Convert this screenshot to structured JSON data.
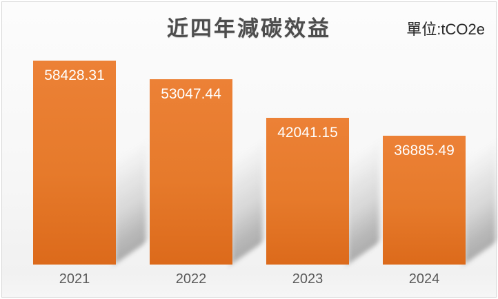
{
  "chart_data": {
    "type": "bar",
    "title": "近四年減碳效益",
    "unit_label": "單位:tCO2e",
    "categories": [
      "2021",
      "2022",
      "2023",
      "2024"
    ],
    "values": [
      58428.31,
      53047.44,
      42041.15,
      36885.49
    ],
    "value_labels": [
      "58428.31",
      "53047.44",
      "42041.15",
      "36885.49"
    ],
    "ylim": [
      0,
      58428.31
    ],
    "xlabel": "",
    "ylabel": "",
    "legend": "none",
    "grid": false,
    "value_labels_position": "inside-top",
    "colors": {
      "bar_top": "#EC8136",
      "bar_bottom": "#DC6A1B",
      "value_label": "#FFFFFF",
      "title": "#4D4D4D",
      "category_label": "#595959",
      "unit_label": "#262626",
      "background_top": "#FCFCFC",
      "background_bottom": "#F1F1F1",
      "frame_border": "#D9D9D9",
      "shadow": "#888888"
    }
  }
}
